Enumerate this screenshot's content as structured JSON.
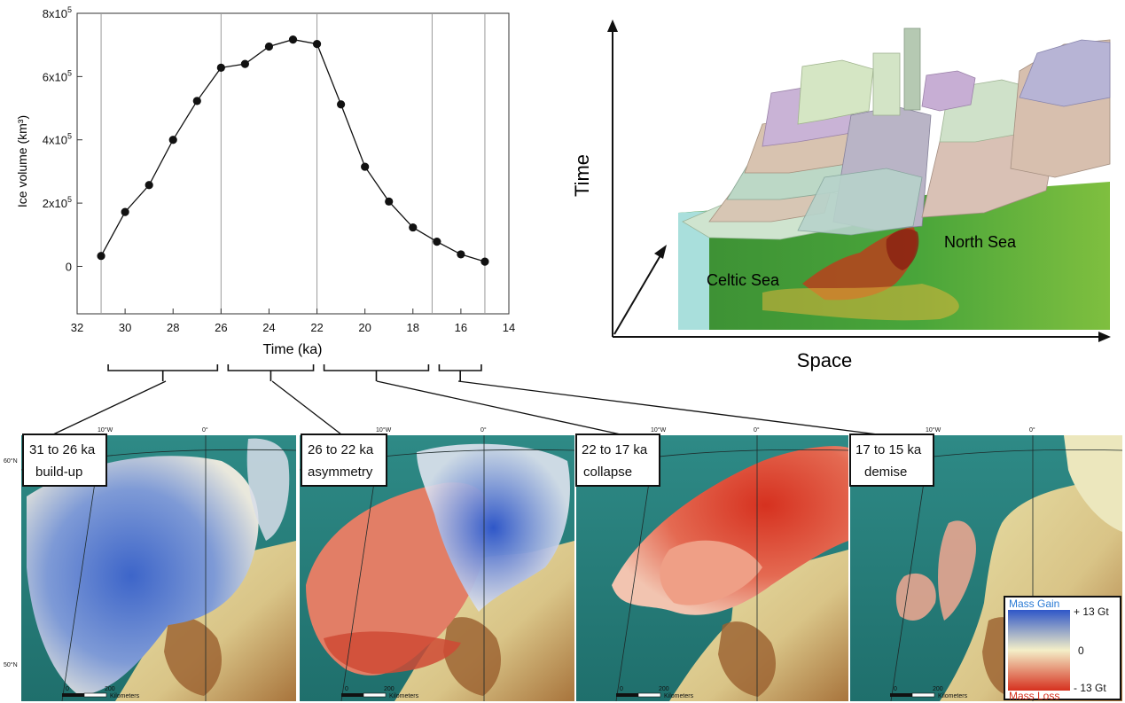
{
  "chart_data": {
    "type": "line",
    "title": "",
    "xlabel": "Time (ka)",
    "ylabel": "Ice volume (km³)",
    "x_reversed": true,
    "xlim": [
      32,
      14
    ],
    "ylim": [
      -150000,
      800000
    ],
    "x_ticks": [
      32,
      30,
      28,
      26,
      24,
      22,
      20,
      18,
      16,
      14
    ],
    "x_tick_labels": [
      "32",
      "30",
      "28",
      "26",
      "24",
      "22",
      "20",
      "18",
      "16",
      "14"
    ],
    "y_ticks": [
      0,
      200000,
      400000,
      600000,
      800000
    ],
    "y_tick_labels": [
      {
        "base": "0",
        "exp": ""
      },
      {
        "base": "2x10",
        "exp": "5"
      },
      {
        "base": "4x10",
        "exp": "5"
      },
      {
        "base": "6x10",
        "exp": "5"
      },
      {
        "base": "8x10",
        "exp": "5"
      }
    ],
    "vertical_lines": [
      31,
      26,
      22,
      17.2,
      15
    ],
    "grid": false,
    "series": [
      {
        "x": [
          31,
          30,
          29,
          28,
          27,
          26,
          25,
          24,
          23,
          22,
          21,
          20,
          19,
          18,
          17,
          16,
          15
        ],
        "y": [
          33000,
          172000,
          257000,
          400000,
          523000,
          628000,
          640000,
          695000,
          717000,
          703000,
          512000,
          315000,
          205000,
          123000,
          78000,
          38000,
          15000
        ]
      }
    ]
  },
  "phase_brackets": [
    {
      "from": 31,
      "to": 26
    },
    {
      "from": 26,
      "to": 22
    },
    {
      "from": 22,
      "to": 17.2
    },
    {
      "from": 17.2,
      "to": 15
    }
  ],
  "schematic": {
    "y_axis_label": "Time",
    "x_axis_label": "Space",
    "region_labels": [
      "Celtic Sea",
      "North Sea"
    ]
  },
  "maps": [
    {
      "range": "31 to 26 ka",
      "phase": "build-up",
      "field": "gain"
    },
    {
      "range": "26 to 22 ka",
      "phase": "asymmetry",
      "field": "mixed"
    },
    {
      "range": "22 to 17 ka",
      "phase": "collapse",
      "field": "loss"
    },
    {
      "range": "17 to 15 ka",
      "phase": "demise",
      "field": "residual"
    }
  ],
  "map_annotations": {
    "lon_labels": [
      "10°W",
      "0°"
    ],
    "lat_labels": [
      "60°N",
      "50°N"
    ],
    "scale_values": [
      "0",
      "200"
    ],
    "scale_unit": "Kilometers"
  },
  "legend": {
    "gain_label": "Mass Gain",
    "loss_label": "Mass Loss",
    "max_label": "+ 13 Gt",
    "zero_label": "0",
    "min_label": "- 13 Gt",
    "colors": {
      "gain": "#2f57c8",
      "zero": "#f4efc8",
      "loss": "#d6311f"
    }
  }
}
